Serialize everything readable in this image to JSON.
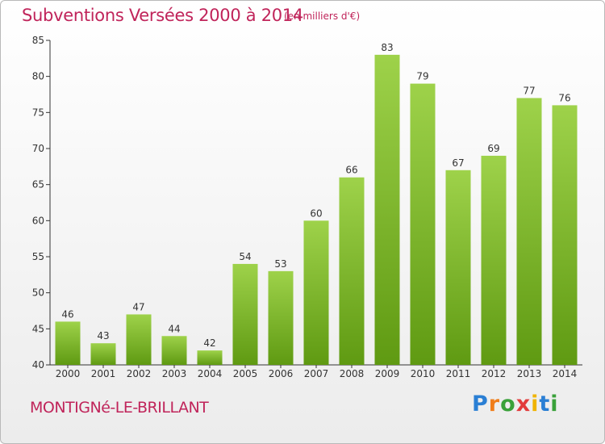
{
  "chart_data": {
    "type": "bar",
    "title": "Subventions Versées 2000 à 2014",
    "subtitle": "(en milliers d'€)",
    "categories": [
      "2000",
      "2001",
      "2002",
      "2003",
      "2004",
      "2005",
      "2006",
      "2007",
      "2008",
      "2009",
      "2010",
      "2011",
      "2012",
      "2013",
      "2014"
    ],
    "values": [
      46,
      43,
      47,
      44,
      42,
      54,
      53,
      60,
      66,
      83,
      79,
      67,
      69,
      77,
      76
    ],
    "ylim": [
      40,
      85
    ],
    "yticks": [
      40,
      45,
      50,
      55,
      60,
      65,
      70,
      75,
      80,
      85
    ],
    "grid": false,
    "bar_color_top": "#9ed24a",
    "bar_color_bottom": "#5f9a12",
    "xlabel": "",
    "ylabel": ""
  },
  "footer": {
    "commune": "MONTIGNé-LE-BRILLANT",
    "brand_letters": [
      "P",
      "r",
      "o",
      "x",
      "i",
      "t",
      "i"
    ],
    "brand_colors": [
      "#2a7fd4",
      "#f07d1a",
      "#3aa13a",
      "#e23c3c",
      "#f0b400",
      "#2a7fd4",
      "#3aa13a"
    ]
  },
  "colors": {
    "title": "#c0245a",
    "axis": "#333333"
  }
}
